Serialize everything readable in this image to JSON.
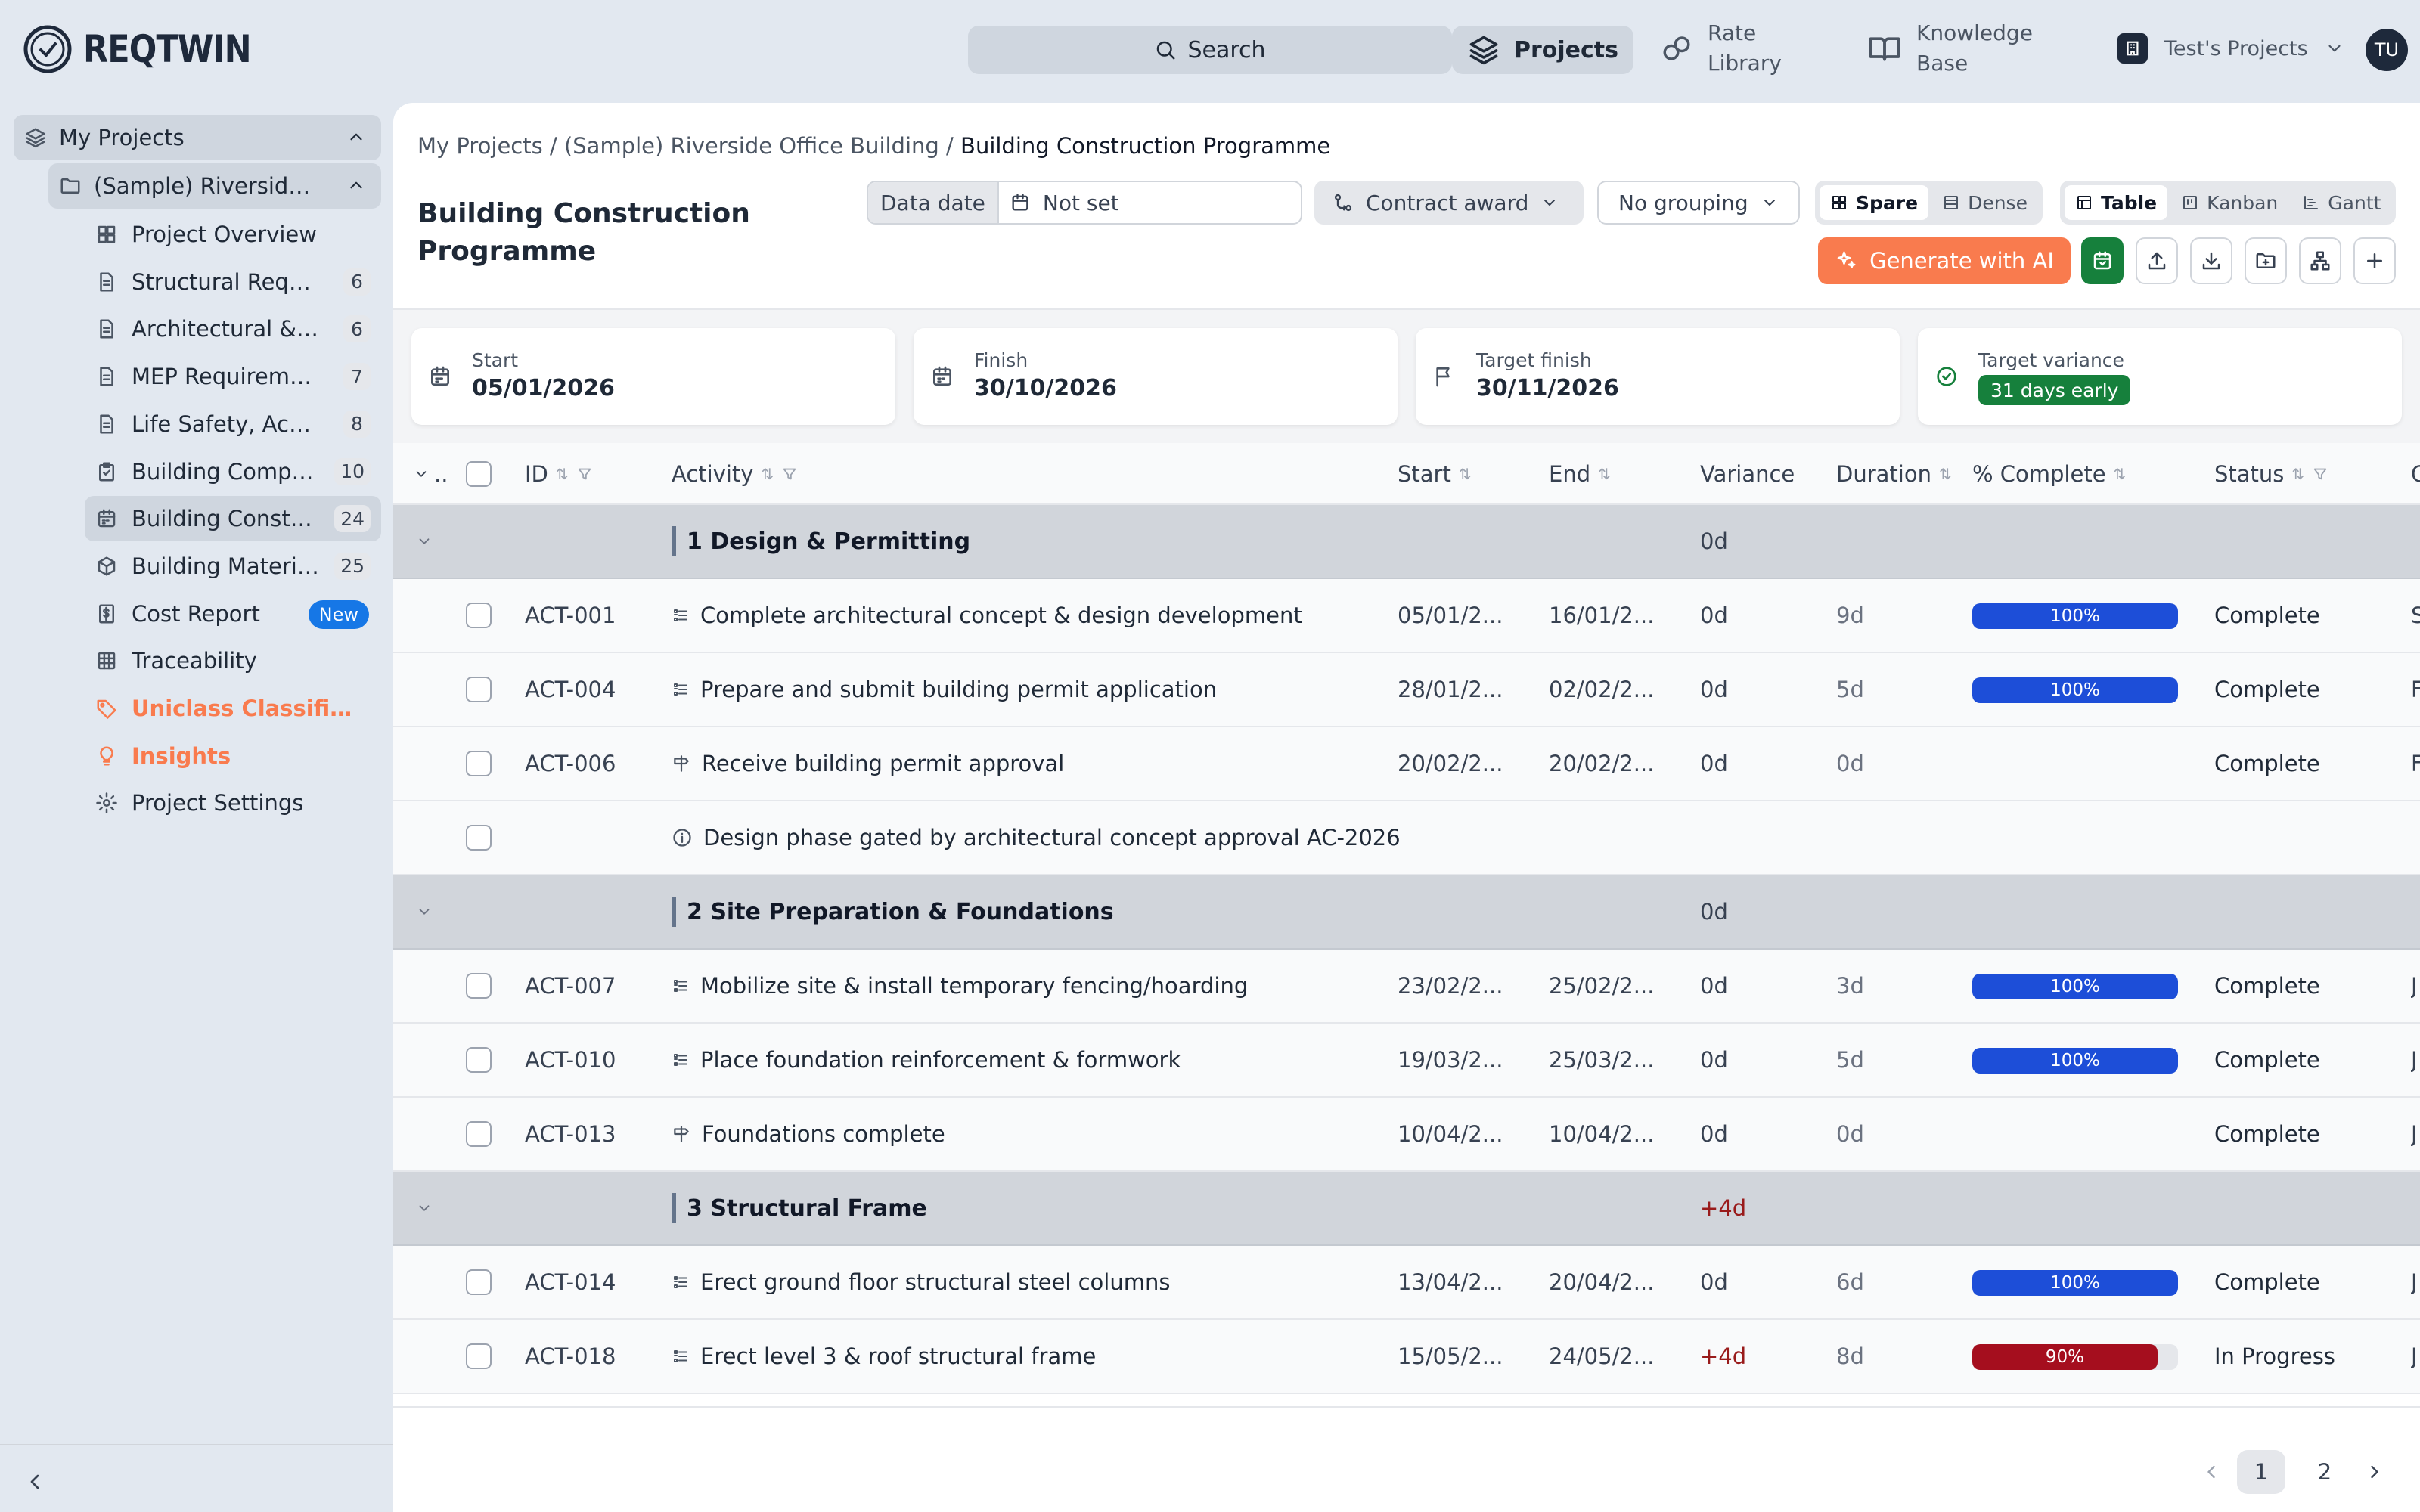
{
  "app": {
    "logo_text": "REQTWIN",
    "search_label": "Search",
    "nav": {
      "projects": "Projects",
      "rate_library": "Rate\nLibrary",
      "knowledge_base": "Knowledge\nBase"
    },
    "org_name": "Test's Projects",
    "avatar_initials": "TU"
  },
  "sidebar": {
    "root": "My Projects",
    "project": "(Sample) Riverside Office Building",
    "items": [
      {
        "label": "Project Overview",
        "icon": "grid-icon",
        "count": ""
      },
      {
        "label": "Structural Requirements",
        "icon": "document-icon",
        "count": "6"
      },
      {
        "label": "Architectural & Interior Requirements",
        "icon": "document-icon",
        "count": "6"
      },
      {
        "label": "MEP Requirements",
        "icon": "document-icon",
        "count": "7"
      },
      {
        "label": "Life Safety, Accessibility",
        "icon": "document-icon",
        "count": "8"
      },
      {
        "label": "Building Compliance Checklist",
        "icon": "clipboard-icon",
        "count": "10"
      },
      {
        "label": "Building Construction Programme",
        "icon": "calendar-icon",
        "count": "24",
        "active": true
      },
      {
        "label": "Building Materials Schedule",
        "icon": "cube-icon",
        "count": "25"
      },
      {
        "label": "Cost Report",
        "icon": "dollar-icon",
        "count": "",
        "badge": "New"
      },
      {
        "label": "Traceability",
        "icon": "table-icon",
        "count": ""
      },
      {
        "label": "Uniclass Classification",
        "icon": "tag-icon",
        "count": "",
        "accent": true
      },
      {
        "label": "Insights",
        "icon": "bulb-icon",
        "count": "",
        "accent": true
      },
      {
        "label": "Project Settings",
        "icon": "gear-icon",
        "count": ""
      }
    ]
  },
  "main": {
    "breadcrumb": {
      "root": "My Projects",
      "project": "(Sample) Riverside Office Building",
      "current": "Building Construction Programme",
      "sep": " / "
    },
    "title": "Building Construction Programme",
    "toolbar": {
      "data_date_label": "Data date",
      "data_date_value": "Not set",
      "baseline": "Contract award",
      "grouping": "No grouping",
      "density": [
        "Spare",
        "Dense"
      ],
      "views": [
        "Table",
        "Kanban",
        "Gantt"
      ],
      "generate_ai": "Generate with AI"
    },
    "stats": [
      {
        "label": "Start",
        "value": "05/01/2026"
      },
      {
        "label": "Finish",
        "value": "30/10/2026"
      },
      {
        "label": "Target finish",
        "value": "30/11/2026"
      },
      {
        "label": "Target variance",
        "value": "31 days early"
      }
    ],
    "table": {
      "columns": {
        "expand": "..",
        "id": "ID",
        "activity": "Activity",
        "start": "Start",
        "end": "End",
        "variance": "Variance",
        "duration": "Duration",
        "complete": "% Complete",
        "status": "Status",
        "more": "C"
      },
      "rows": [
        {
          "type": "group",
          "title": "1 Design & Permitting",
          "variance": "0d"
        },
        {
          "type": "task",
          "id": "ACT-001",
          "activity": "Complete architectural concept & design development",
          "start": "05/01/2...",
          "end": "16/01/2...",
          "variance": "0d",
          "duration": "9d",
          "pct": 100,
          "pct_label": "100%",
          "status": "Complete",
          "extra": "S"
        },
        {
          "type": "task",
          "id": "ACT-004",
          "activity": "Prepare and submit building permit application",
          "start": "28/01/2...",
          "end": "02/02/2...",
          "variance": "0d",
          "duration": "5d",
          "pct": 100,
          "pct_label": "100%",
          "status": "Complete",
          "extra": "F"
        },
        {
          "type": "milestone",
          "id": "ACT-006",
          "activity": "Receive building permit approval",
          "start": "20/02/2...",
          "end": "20/02/2...",
          "variance": "0d",
          "duration": "0d",
          "status": "Complete",
          "extra": "F"
        },
        {
          "type": "note",
          "activity": "Design phase gated by architectural concept approval AC-2026"
        },
        {
          "type": "group",
          "title": "2 Site Preparation & Foundations",
          "variance": "0d"
        },
        {
          "type": "task",
          "id": "ACT-007",
          "activity": "Mobilize site & install temporary fencing/hoarding",
          "start": "23/02/2...",
          "end": "25/02/2...",
          "variance": "0d",
          "duration": "3d",
          "pct": 100,
          "pct_label": "100%",
          "status": "Complete",
          "extra": "J"
        },
        {
          "type": "task",
          "id": "ACT-010",
          "activity": "Place foundation reinforcement & formwork",
          "start": "19/03/2...",
          "end": "25/03/2...",
          "variance": "0d",
          "duration": "5d",
          "pct": 100,
          "pct_label": "100%",
          "status": "Complete",
          "extra": "J"
        },
        {
          "type": "milestone",
          "id": "ACT-013",
          "activity": "Foundations complete",
          "start": "10/04/2...",
          "end": "10/04/2...",
          "variance": "0d",
          "duration": "0d",
          "status": "Complete",
          "extra": "J"
        },
        {
          "type": "group",
          "title": "3 Structural Frame",
          "variance": "+4d"
        },
        {
          "type": "task",
          "id": "ACT-014",
          "activity": "Erect ground floor structural steel columns",
          "start": "13/04/2...",
          "end": "20/04/2...",
          "variance": "0d",
          "duration": "6d",
          "pct": 100,
          "pct_label": "100%",
          "status": "Complete",
          "extra": "J"
        },
        {
          "type": "task",
          "id": "ACT-018",
          "activity": "Erect level 3 & roof structural frame",
          "start": "15/05/2...",
          "end": "24/05/2...",
          "variance": "+4d",
          "duration": "8d",
          "pct": 90,
          "pct_label": "90%",
          "status": "In Progress",
          "extra": "J"
        }
      ]
    },
    "pagination": {
      "pages": [
        "1",
        "2"
      ],
      "current": "1"
    }
  },
  "colors": {
    "accent": "#f97b4e",
    "progress_ok": "#1d4ed8",
    "progress_late": "#a50e1e",
    "success": "#16803c",
    "badge_new": "#1677e6"
  }
}
